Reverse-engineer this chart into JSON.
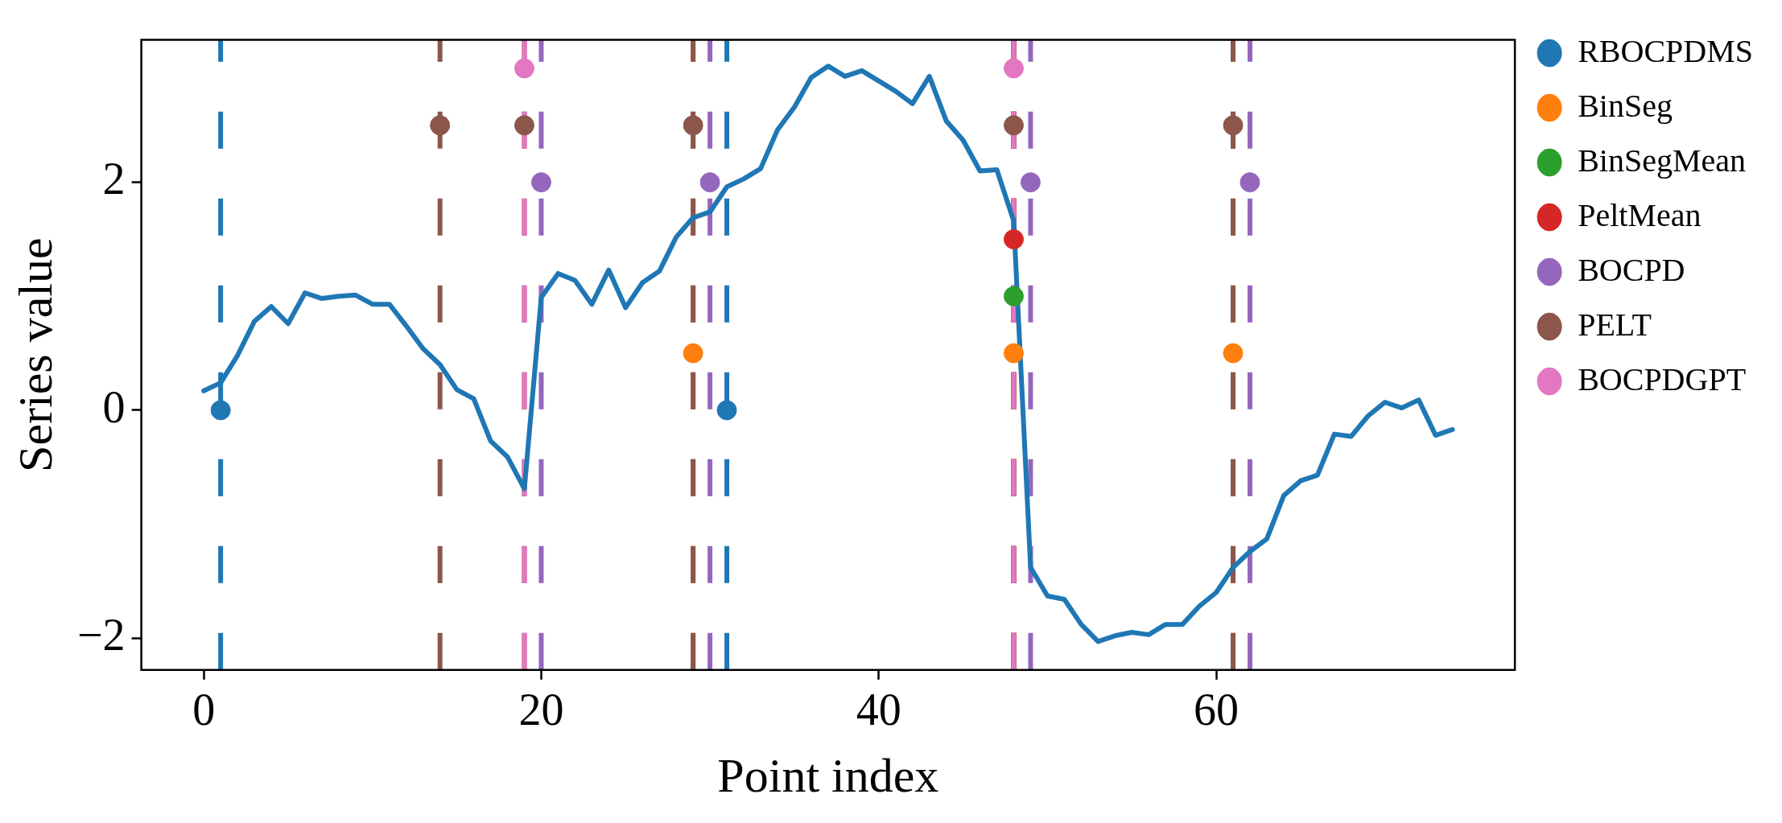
{
  "chart_data": {
    "type": "scatter",
    "xlabel": "Point index",
    "ylabel": "Series value",
    "xlim": [
      -3.7,
      77.7
    ],
    "ylim": [
      -2.28,
      3.25
    ],
    "xticks": [
      0,
      20,
      40,
      60
    ],
    "yticks": [
      {
        "value": -2,
        "label": "−2"
      },
      0,
      2
    ],
    "grid": false,
    "legend": "right",
    "marker": "circle",
    "series": [
      {
        "type": "line",
        "color": "#1f77b4",
        "marker": "none",
        "line_style": "solid",
        "x": [
          0,
          1,
          2,
          3,
          4,
          5,
          6,
          7,
          8,
          9,
          10,
          11,
          12,
          13,
          14,
          15,
          16,
          17,
          18,
          19,
          20,
          21,
          22,
          23,
          24,
          25,
          26,
          27,
          28,
          29,
          30,
          31,
          32,
          33,
          34,
          35,
          36,
          37,
          38,
          39,
          40,
          41,
          42,
          43,
          44,
          45,
          46,
          47,
          48,
          49,
          50,
          51,
          52,
          53,
          54,
          55,
          56,
          57,
          58,
          59,
          60,
          61,
          62,
          63,
          64,
          65,
          66,
          67,
          68,
          69,
          70,
          71,
          72,
          73,
          74
        ],
        "values": [
          0.17,
          0.24,
          0.48,
          0.78,
          0.91,
          0.76,
          1.03,
          0.98,
          1.0,
          1.01,
          0.93,
          0.93,
          0.74,
          0.54,
          0.4,
          0.18,
          0.1,
          -0.27,
          -0.41,
          -0.69,
          0.99,
          1.2,
          1.14,
          0.93,
          1.23,
          0.9,
          1.12,
          1.22,
          1.52,
          1.69,
          1.74,
          1.96,
          2.03,
          2.12,
          2.46,
          2.66,
          2.92,
          3.02,
          2.93,
          2.98,
          2.89,
          2.8,
          2.69,
          2.93,
          2.54,
          2.37,
          2.1,
          2.11,
          1.66,
          -1.38,
          -1.63,
          -1.66,
          -1.88,
          -2.03,
          -1.98,
          -1.95,
          -1.97,
          -1.88,
          -1.88,
          -1.72,
          -1.6,
          -1.38,
          -1.24,
          -1.13,
          -0.75,
          -0.62,
          -0.57,
          -0.21,
          -0.23,
          -0.05,
          0.07,
          0.02,
          0.09,
          -0.22,
          -0.17
        ]
      },
      {
        "name": "RBOCPDMS",
        "color": "#1f77b4",
        "x": [
          1,
          31
        ],
        "values": [
          0,
          0
        ]
      },
      {
        "name": "BinSeg",
        "color": "#ff7f0e",
        "x": [
          29,
          48,
          61
        ],
        "values": [
          0.5,
          0.5,
          0.5
        ]
      },
      {
        "name": "BinSegMean",
        "color": "#2ca02c",
        "x": [
          48
        ],
        "values": [
          1.0
        ]
      },
      {
        "name": "PeltMean",
        "color": "#d62728",
        "x": [
          48
        ],
        "values": [
          1.5
        ]
      },
      {
        "name": "BOCPD",
        "color": "#9467bd",
        "x": [
          20,
          30,
          49,
          62
        ],
        "values": [
          2.0,
          2.0,
          2.0,
          2.0
        ]
      },
      {
        "name": "PELT",
        "color": "#8c564b",
        "x": [
          14,
          19,
          29,
          48,
          61
        ],
        "values": [
          2.5,
          2.5,
          2.5,
          2.5,
          2.5
        ]
      },
      {
        "name": "BOCPDGPT",
        "color": "#e377c2",
        "x": [
          19,
          48
        ],
        "values": [
          3.0,
          3.0
        ]
      }
    ],
    "ref_lines": [
      {
        "axis": "x",
        "value": 1,
        "color": "#1f77b4",
        "line_style": "dashed"
      },
      {
        "axis": "x",
        "value": 31,
        "color": "#1f77b4",
        "line_style": "dashed"
      },
      {
        "axis": "x",
        "value": 29,
        "color": "#ff7f0e",
        "line_style": "dashed"
      },
      {
        "axis": "x",
        "value": 48,
        "color": "#ff7f0e",
        "line_style": "dashed"
      },
      {
        "axis": "x",
        "value": 61,
        "color": "#ff7f0e",
        "line_style": "dashed"
      },
      {
        "axis": "x",
        "value": 48,
        "color": "#2ca02c",
        "line_style": "dashed"
      },
      {
        "axis": "x",
        "value": 48,
        "color": "#d62728",
        "line_style": "dashed"
      },
      {
        "axis": "x",
        "value": 20,
        "color": "#9467bd",
        "line_style": "dashed"
      },
      {
        "axis": "x",
        "value": 30,
        "color": "#9467bd",
        "line_style": "dashed"
      },
      {
        "axis": "x",
        "value": 49,
        "color": "#9467bd",
        "line_style": "dashed"
      },
      {
        "axis": "x",
        "value": 62,
        "color": "#9467bd",
        "line_style": "dashed"
      },
      {
        "axis": "x",
        "value": 14,
        "color": "#8c564b",
        "line_style": "dashed"
      },
      {
        "axis": "x",
        "value": 19,
        "color": "#8c564b",
        "line_style": "dashed"
      },
      {
        "axis": "x",
        "value": 29,
        "color": "#8c564b",
        "line_style": "dashed"
      },
      {
        "axis": "x",
        "value": 48,
        "color": "#8c564b",
        "line_style": "dashed"
      },
      {
        "axis": "x",
        "value": 61,
        "color": "#8c564b",
        "line_style": "dashed"
      },
      {
        "axis": "x",
        "value": 19,
        "color": "#e377c2",
        "line_style": "dashed"
      },
      {
        "axis": "x",
        "value": 48,
        "color": "#e377c2",
        "line_style": "dashed"
      }
    ]
  }
}
